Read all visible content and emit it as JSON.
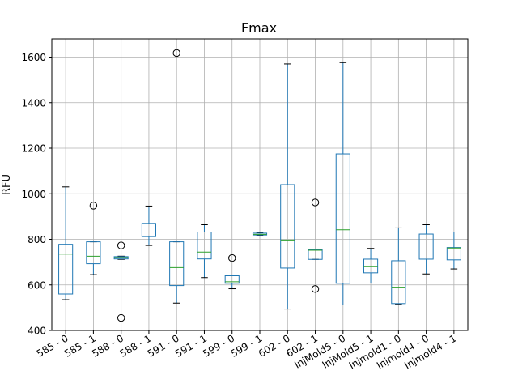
{
  "chart_data": {
    "type": "box",
    "title": "Fmax",
    "xlabel": "",
    "ylabel": "RFU",
    "ylim": [
      400,
      1680
    ],
    "yticks": [
      400,
      600,
      800,
      1000,
      1200,
      1400,
      1600
    ],
    "grid": true,
    "colors": {
      "box": "#1f77b4",
      "median": "#2ca02c",
      "whisker": "#000000",
      "outlier": "#000000",
      "grid": "#b0b0b0"
    },
    "categories": [
      "585 - 0",
      "585 - 1",
      "588 - 0",
      "588 - 1",
      "591 - 0",
      "591 - 1",
      "599 - 0",
      "599 - 1",
      "602 - 0",
      "602 - 1",
      "InjMold5 - 0",
      "InjMold5 - 1",
      "Injmold1 - 0",
      "Injmold4 - 0",
      "Injmold4 - 1"
    ],
    "boxes": [
      {
        "whislo": 535,
        "q1": 560,
        "med": 735,
        "q3": 778,
        "whishi": 1030,
        "fliers": []
      },
      {
        "whislo": 645,
        "q1": 693,
        "med": 726,
        "q3": 789,
        "whishi": 789,
        "fliers": [
          948
        ]
      },
      {
        "whislo": 712,
        "q1": 714,
        "med": 720,
        "q3": 724,
        "whishi": 726,
        "fliers": [
          773,
          455
        ]
      },
      {
        "whislo": 773,
        "q1": 812,
        "med": 832,
        "q3": 870,
        "whishi": 946,
        "fliers": []
      },
      {
        "whislo": 520,
        "q1": 597,
        "med": 676,
        "q3": 789,
        "whishi": 789,
        "fliers": [
          1618
        ]
      },
      {
        "whislo": 632,
        "q1": 714,
        "med": 744,
        "q3": 832,
        "whishi": 864,
        "fliers": []
      },
      {
        "whislo": 583,
        "q1": 607,
        "med": 614,
        "q3": 640,
        "whishi": 640,
        "fliers": [
          718
        ]
      },
      {
        "whislo": 817,
        "q1": 819,
        "med": 822,
        "q3": 827,
        "whishi": 830,
        "fliers": []
      },
      {
        "whislo": 494,
        "q1": 674,
        "med": 797,
        "q3": 1040,
        "whishi": 1570,
        "fliers": []
      },
      {
        "whislo": 712,
        "q1": 712,
        "med": 752,
        "q3": 755,
        "whishi": 755,
        "fliers": [
          962,
          582
        ]
      },
      {
        "whislo": 512,
        "q1": 607,
        "med": 842,
        "q3": 1175,
        "whishi": 1576,
        "fliers": []
      },
      {
        "whislo": 608,
        "q1": 653,
        "med": 680,
        "q3": 713,
        "whishi": 760,
        "fliers": []
      },
      {
        "whislo": 516,
        "q1": 518,
        "med": 590,
        "q3": 706,
        "whishi": 850,
        "fliers": []
      },
      {
        "whislo": 648,
        "q1": 713,
        "med": 775,
        "q3": 823,
        "whishi": 864,
        "fliers": []
      },
      {
        "whislo": 670,
        "q1": 710,
        "med": 762,
        "q3": 764,
        "whishi": 832,
        "fliers": []
      }
    ]
  }
}
